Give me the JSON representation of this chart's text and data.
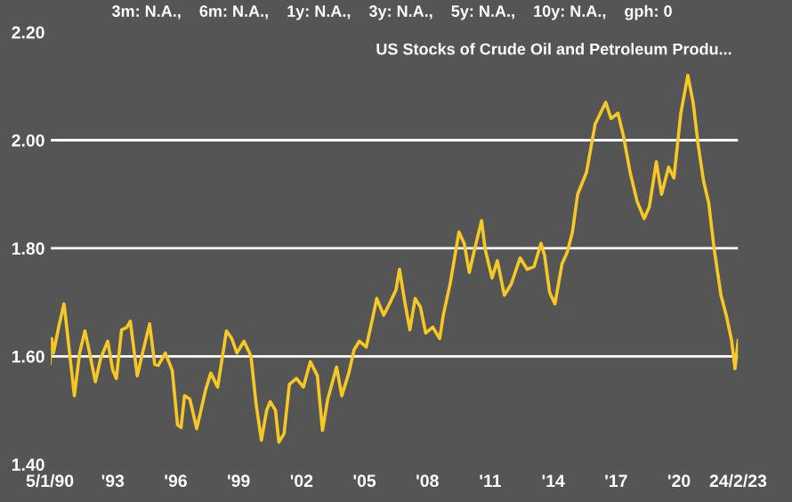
{
  "chart_data": {
    "type": "line",
    "title": "US Stocks of Crude Oil and Petroleum Produ...",
    "subtitle": "3m: N.A.,    6m: N.A.,    1y: N.A.,    3y: N.A.,    5y: N.A.,    10y: N.A.,    gph: 0",
    "x": [
      "1990-05",
      "1990-06",
      "1990-07",
      "1990-10",
      "1991-01",
      "1991-02",
      "1991-05",
      "1991-07",
      "1991-10",
      "1992-01",
      "1992-03",
      "1992-07",
      "1992-10",
      "1993-02",
      "1993-05",
      "1993-07",
      "1993-10",
      "1994-01",
      "1994-03",
      "1994-07",
      "1994-10",
      "1995-02",
      "1995-05",
      "1995-07",
      "1995-11",
      "1996-01",
      "1996-03",
      "1996-06",
      "1996-08",
      "1996-10",
      "1997-01",
      "1997-05",
      "1997-10",
      "1998-01",
      "1998-05",
      "1998-10",
      "1999-01",
      "1999-04",
      "1999-08",
      "1999-12",
      "2000-03",
      "2000-06",
      "2000-09",
      "2000-11",
      "2001-02",
      "2001-04",
      "2001-07",
      "2001-10",
      "2002-02",
      "2002-06",
      "2002-10",
      "2003-02",
      "2003-05",
      "2003-08",
      "2004-01",
      "2004-04",
      "2004-08",
      "2004-11",
      "2005-02",
      "2005-06",
      "2005-10",
      "2005-12",
      "2006-04",
      "2006-08",
      "2006-11",
      "2007-01",
      "2007-04",
      "2007-07",
      "2007-10",
      "2008-01",
      "2008-04",
      "2008-08",
      "2008-12",
      "2009-02",
      "2009-06",
      "2009-11",
      "2010-02",
      "2010-05",
      "2010-08",
      "2010-12",
      "2011-02",
      "2011-06",
      "2011-09",
      "2012-01",
      "2012-05",
      "2012-10",
      "2013-02",
      "2013-06",
      "2013-10",
      "2013-12",
      "2014-03",
      "2014-06",
      "2014-10",
      "2015-01",
      "2015-04",
      "2015-07",
      "2015-12",
      "2016-05",
      "2016-11",
      "2017-02",
      "2017-06",
      "2017-09",
      "2018-01",
      "2018-05",
      "2018-09",
      "2018-12",
      "2019-04",
      "2019-07",
      "2019-11",
      "2020-02",
      "2020-06",
      "2020-10",
      "2021-01",
      "2021-04",
      "2021-07",
      "2021-10",
      "2022-01",
      "2022-05",
      "2022-08",
      "2022-11",
      "2023-01",
      "2023-02-24"
    ],
    "series": [
      {
        "color": "#f5c825",
        "values": [
          1.585,
          1.633,
          1.606,
          1.654,
          1.697,
          1.67,
          1.585,
          1.527,
          1.606,
          1.647,
          1.617,
          1.553,
          1.596,
          1.628,
          1.574,
          1.559,
          1.649,
          1.654,
          1.665,
          1.564,
          1.606,
          1.66,
          1.585,
          1.583,
          1.606,
          1.59,
          1.574,
          1.473,
          1.468,
          1.527,
          1.521,
          1.466,
          1.537,
          1.569,
          1.543,
          1.647,
          1.633,
          1.606,
          1.628,
          1.601,
          1.511,
          1.445,
          1.5,
          1.516,
          1.5,
          1.441,
          1.457,
          1.548,
          1.559,
          1.543,
          1.59,
          1.564,
          1.463,
          1.521,
          1.58,
          1.527,
          1.569,
          1.612,
          1.628,
          1.617,
          1.676,
          1.707,
          1.676,
          1.702,
          1.723,
          1.761,
          1.702,
          1.649,
          1.707,
          1.691,
          1.643,
          1.654,
          1.633,
          1.676,
          1.734,
          1.83,
          1.809,
          1.755,
          1.798,
          1.851,
          1.798,
          1.745,
          1.777,
          1.713,
          1.734,
          1.782,
          1.761,
          1.766,
          1.809,
          1.787,
          1.718,
          1.697,
          1.771,
          1.793,
          1.83,
          1.9,
          1.94,
          2.03,
          2.07,
          2.04,
          2.05,
          2.01,
          1.94,
          1.887,
          1.855,
          1.877,
          1.96,
          1.9,
          1.95,
          1.93,
          2.05,
          2.12,
          2.07,
          1.99,
          1.925,
          1.883,
          1.8,
          1.713,
          1.676,
          1.63,
          1.577,
          1.63
        ]
      }
    ],
    "xlim": [
      "1990-05-01",
      "2023-03-10"
    ],
    "xticks": [
      {
        "value": "1990-05-01",
        "label": "5/1/90"
      },
      {
        "value": "1993-05-01",
        "label": "'93"
      },
      {
        "value": "1996-05-01",
        "label": "'96"
      },
      {
        "value": "1999-05-01",
        "label": "'99"
      },
      {
        "value": "2002-05-01",
        "label": "'02"
      },
      {
        "value": "2005-05-01",
        "label": "'05"
      },
      {
        "value": "2008-05-01",
        "label": "'08"
      },
      {
        "value": "2011-05-01",
        "label": "'11"
      },
      {
        "value": "2014-05-01",
        "label": "'14"
      },
      {
        "value": "2017-05-01",
        "label": "'17"
      },
      {
        "value": "2020-05-01",
        "label": "'20"
      },
      {
        "value": "2023-02-24",
        "label": "24/2/23"
      }
    ],
    "ylim": [
      1.4,
      2.2
    ],
    "yticks": [
      {
        "value": 1.4,
        "label": "1.40"
      },
      {
        "value": 1.6,
        "label": "1.60"
      },
      {
        "value": 1.8,
        "label": "1.80"
      },
      {
        "value": 2.0,
        "label": "2.00"
      },
      {
        "value": 2.2,
        "label": "2.20"
      }
    ],
    "grid": "y",
    "legend": false,
    "marker": "none",
    "line_style": "solid"
  }
}
